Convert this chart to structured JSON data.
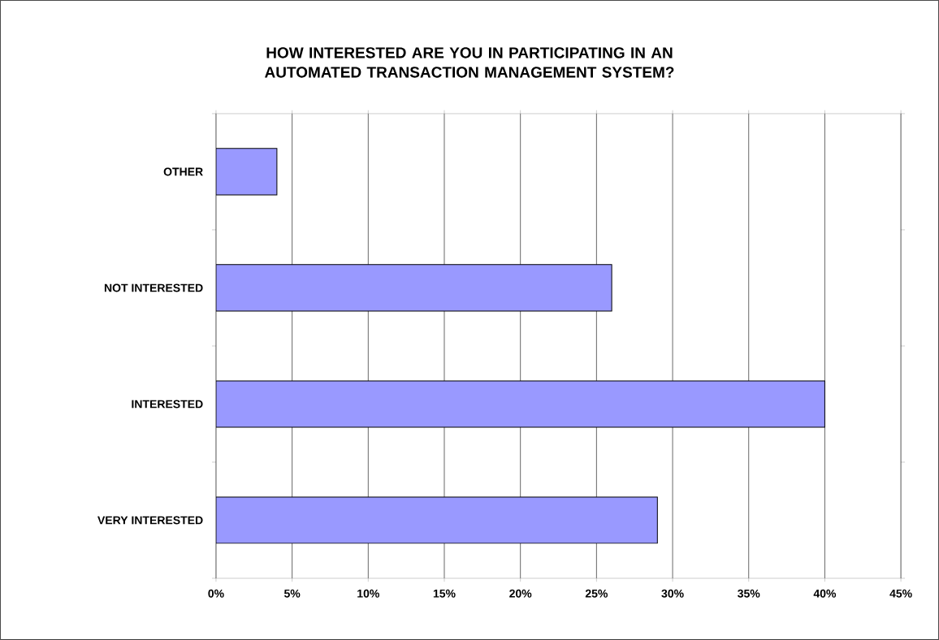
{
  "chart_data": {
    "type": "bar",
    "orientation": "horizontal",
    "title": "HOW INTERESTED ARE YOU IN PARTICIPATING IN AN AUTOMATED TRANSACTION MANAGEMENT SYSTEM?",
    "categories": [
      "OTHER",
      "NOT INTERESTED",
      "INTERESTED",
      "VERY INTERESTED"
    ],
    "values": [
      4,
      26,
      40,
      29
    ],
    "color": "#9999ff",
    "xlim": [
      0,
      45
    ],
    "xticks": [
      {
        "value": 0,
        "label": "0%"
      },
      {
        "value": 5,
        "label": "5%"
      },
      {
        "value": 10,
        "label": "10%"
      },
      {
        "value": 15,
        "label": "15%"
      },
      {
        "value": 20,
        "label": "20%"
      },
      {
        "value": 25,
        "label": "25%"
      },
      {
        "value": 30,
        "label": "30%"
      },
      {
        "value": 35,
        "label": "35%"
      },
      {
        "value": 40,
        "label": "40%"
      },
      {
        "value": 45,
        "label": "45%"
      }
    ],
    "grid": "x"
  }
}
